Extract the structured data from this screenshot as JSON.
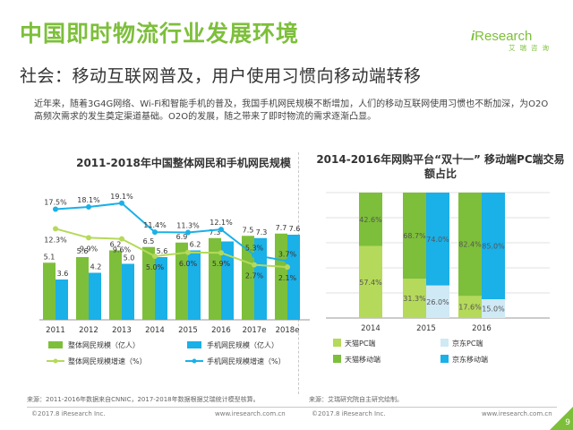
{
  "header": {
    "title": "中国即时物流行业发展环境",
    "subtitle": "社会：移动互联网普及，用户使用习惯向移动端转移",
    "logo_i": "i",
    "logo_rest": "Research",
    "logo_sub": "艾瑞咨询"
  },
  "intro": "近年来，随着3G4G网络、Wi-Fi和智能手机的普及，我国手机网民规模不断增加，人们的移动互联网使用习惯也不断加深，为O2O高频次需求的发生奠定渠道基础。O2O的发展，随之带来了即时物流的需求逐渐凸显。",
  "chart1_title": "2011-2018年中国整体网民和手机网民规模",
  "chart2_title": "2014-2016年网购平台“双十一” 移动端PC端交易额占比",
  "colors": {
    "green": "#7dbf3a",
    "blue": "#1ab0e8",
    "pale_green": "#b5d95a",
    "pale_blue": "#cfe9f5",
    "title_green": "#7dbf3a"
  },
  "chart_data": [
    {
      "type": "bar",
      "title": "2011-2018年中国整体网民和手机网民规模",
      "categories": [
        "2011",
        "2012",
        "2013",
        "2014",
        "2015",
        "2016",
        "2017e",
        "2018e"
      ],
      "series": [
        {
          "name": "整体网民规模（亿人）",
          "type": "bar",
          "values": [
            5.1,
            5.6,
            6.2,
            6.5,
            6.9,
            7.3,
            7.5,
            7.7
          ],
          "labels": [
            "5.1",
            "5.6",
            "6.2",
            "6.5",
            "6.9",
            "7.3",
            "7.5",
            "7.7"
          ]
        },
        {
          "name": "手机网民规模（亿人）",
          "type": "bar",
          "values": [
            3.6,
            4.2,
            5.0,
            5.6,
            6.2,
            7.0,
            7.3,
            7.6
          ],
          "labels": [
            "3.6",
            "4.2",
            "5.0",
            "5.6",
            "6.2",
            "",
            "7.3",
            "7.6"
          ]
        },
        {
          "name": "整体网民规模增速（%）",
          "type": "line",
          "values": [
            12.3,
            9.9,
            9.6,
            5.0,
            6.0,
            5.9,
            2.7,
            2.1
          ],
          "labels": [
            "12.3%",
            "9.9%",
            "9.6%",
            "5.0%",
            "6.0%",
            "5.9%",
            "2.7%",
            "2.1%"
          ]
        },
        {
          "name": "手机网民规模增速（%）",
          "type": "line",
          "values": [
            17.5,
            18.1,
            19.1,
            11.4,
            11.3,
            12.1,
            5.3,
            3.7
          ],
          "labels": [
            "17.5%",
            "18.1%",
            "19.1%",
            "11.4%",
            "11.3%",
            "12.1%",
            "5.3%",
            "3.7%"
          ]
        }
      ],
      "legend_placement": "bottom",
      "grid": false
    },
    {
      "type": "stacked-bar",
      "title": "2014-2016年网购平台“双十一” 移动端PC端交易额占比",
      "categories": [
        "2014",
        "2015",
        "2016"
      ],
      "unit": "%",
      "series": [
        {
          "name": "天猫PC端",
          "group": "天猫",
          "values": [
            57.4,
            31.3,
            17.6
          ]
        },
        {
          "name": "天猫移动端",
          "group": "天猫",
          "values": [
            42.6,
            68.7,
            82.4
          ]
        },
        {
          "name": "京东PC端",
          "group": "京东",
          "values": [
            null,
            26.0,
            15.0
          ]
        },
        {
          "name": "京东移动端",
          "group": "京东",
          "values": [
            null,
            74.0,
            85.0
          ]
        }
      ],
      "ylim": [
        0,
        100
      ],
      "legend_placement": "bottom",
      "grid": true
    }
  ],
  "sources": {
    "left": "来源：2011-2016年数据来自CNNIC，2017-2018年数据根据艾瑞统计模型核算。",
    "right": "来源：艾瑞研究院自主研究绘制。"
  },
  "footer": {
    "copyright_left": "©2017.8 iResearch Inc.",
    "url_left": "www.iresearch.com.cn",
    "copyright_right": "©2017.8 iResearch Inc.",
    "url_right": "www.iresearch.com.cn"
  },
  "page_number": "9"
}
